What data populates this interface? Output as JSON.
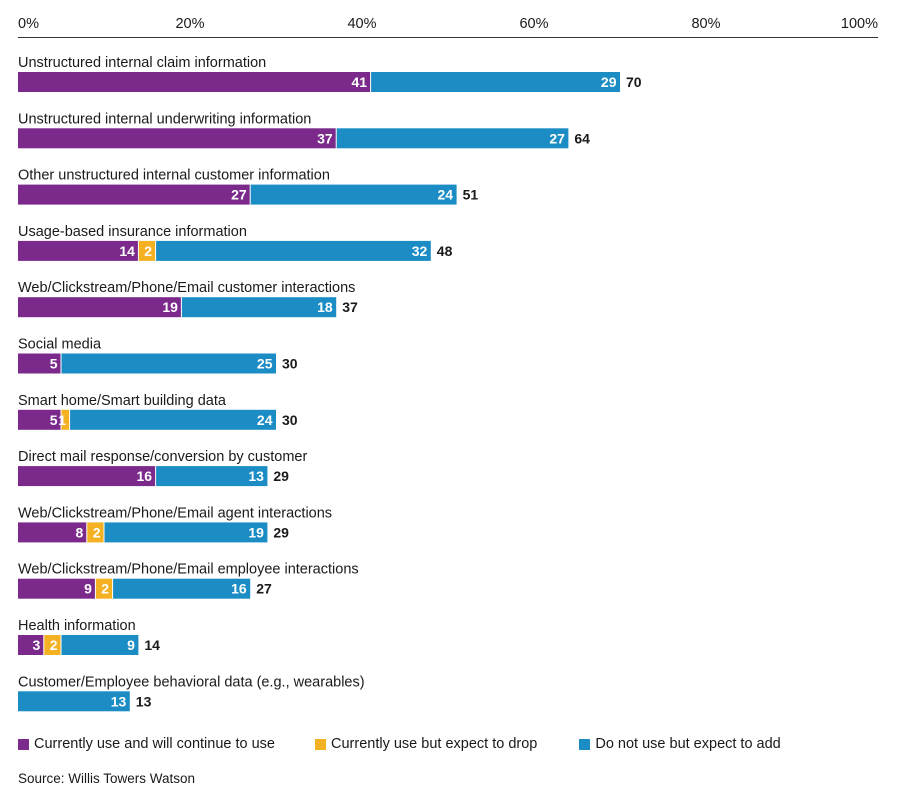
{
  "chart_data": {
    "type": "bar",
    "orientation": "horizontal",
    "stacked": true,
    "xlim": [
      0,
      100
    ],
    "x_ticks": [
      "0%",
      "20%",
      "40%",
      "60%",
      "80%",
      "100%"
    ],
    "categories": [
      "Unstructured internal claim information",
      "Unstructured internal underwriting information",
      "Other unstructured internal customer information",
      "Usage-based insurance information",
      "Web/Clickstream/Phone/Email customer interactions",
      "Social media",
      "Smart home/Smart building data",
      "Direct mail response/conversion by customer",
      "Web/Clickstream/Phone/Email agent interactions",
      "Web/Clickstream/Phone/Email employee interactions",
      "Health information",
      "Customer/Employee behavioral data (e.g., wearables)"
    ],
    "series": [
      {
        "name": "Currently use and will continue to use",
        "color": "#7b2a8c",
        "values": [
          41,
          37,
          27,
          14,
          19,
          5,
          5,
          16,
          8,
          9,
          3,
          0
        ]
      },
      {
        "name": "Currently use but expect to drop",
        "color": "#f4b223",
        "values": [
          0,
          0,
          0,
          2,
          0,
          0,
          1,
          0,
          2,
          2,
          2,
          0
        ]
      },
      {
        "name": "Do not use but expect to add",
        "color": "#1b8dc4",
        "values": [
          29,
          27,
          24,
          32,
          18,
          25,
          24,
          13,
          19,
          16,
          9,
          13
        ]
      }
    ],
    "totals": [
      70,
      64,
      51,
      48,
      37,
      30,
      30,
      29,
      29,
      27,
      14,
      13
    ],
    "legend_position": "bottom"
  },
  "source": "Source: Willis Towers Watson"
}
